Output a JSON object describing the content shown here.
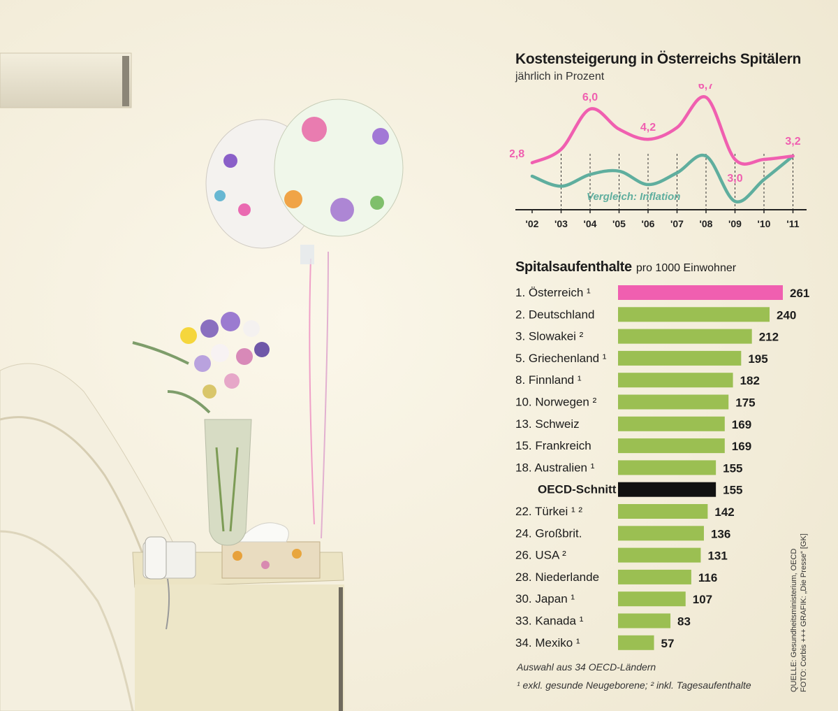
{
  "line_chart": {
    "title": "Kostensteigerung in Österreichs Spitälern",
    "subtitle": "jährlich in Prozent",
    "inflation_label": "Vergleich: Inflation"
  },
  "bar_chart": {
    "title": "Spitalsaufenthalte",
    "subtitle": "pro 1000 Einwohner"
  },
  "notes": {
    "line1": "Auswahl aus 34 OECD-Ländern",
    "line2": "¹ exkl. gesunde Neugeborene; ² inkl. Tagesaufenthalte"
  },
  "source": {
    "line1": "QUELLE: Gesundheitsministerium, OECD",
    "line2": "FOTO: Corbis +++ GRAFIK: „Die Presse“ [GK]"
  },
  "colors": {
    "pink": "#f05fb0",
    "teal": "#5fae9e",
    "green": "#9bbf52",
    "black": "#111111"
  },
  "chart_data": [
    {
      "type": "line",
      "title": "Kostensteigerung in Österreichs Spitälern",
      "subtitle": "jährlich in Prozent",
      "x": [
        "'02",
        "'03",
        "'04",
        "'05",
        "'06",
        "'07",
        "'08",
        "'09",
        "'10",
        "'11"
      ],
      "series": [
        {
          "name": "Kostensteigerung",
          "values": [
            2.8,
            3.6,
            6.0,
            4.8,
            4.2,
            4.9,
            6.7,
            3.0,
            3.0,
            3.2
          ],
          "labels": [
            "2,8",
            null,
            "6,0",
            null,
            "4,2",
            null,
            "6,7",
            "3,0",
            null,
            "3,2"
          ],
          "color": "#f05fb0"
        },
        {
          "name": "Vergleich: Inflation",
          "values": [
            2.0,
            1.4,
            2.1,
            2.3,
            1.5,
            2.2,
            3.2,
            0.5,
            1.8,
            3.2
          ],
          "color": "#5fae9e"
        }
      ],
      "ylim": [
        0,
        7.5
      ],
      "grid": "vertical dashed"
    },
    {
      "type": "bar",
      "title": "Spitalsaufenthalte",
      "subtitle": "pro 1000 Einwohner",
      "orientation": "horizontal",
      "categories": [
        "1. Österreich ¹",
        "2. Deutschland",
        "3. Slowakei ²",
        "5. Griechenland ¹",
        "8. Finnland ¹",
        "10. Norwegen ²",
        "13. Schweiz",
        "15. Frankreich",
        "18. Australien ¹",
        "OECD-Schnitt",
        "22. Türkei ¹ ²",
        "24. Großbrit.",
        "26. USA ²",
        "28. Niederlande",
        "30. Japan ¹",
        "33. Kanada ¹",
        "34. Mexiko ¹"
      ],
      "values": [
        261,
        240,
        212,
        195,
        182,
        175,
        169,
        169,
        155,
        155,
        142,
        136,
        131,
        116,
        107,
        83,
        57
      ],
      "highlight": {
        "0": "#f05fb0",
        "9": "#111111"
      },
      "default_color": "#9bbf52",
      "xlim": [
        0,
        261
      ]
    }
  ]
}
